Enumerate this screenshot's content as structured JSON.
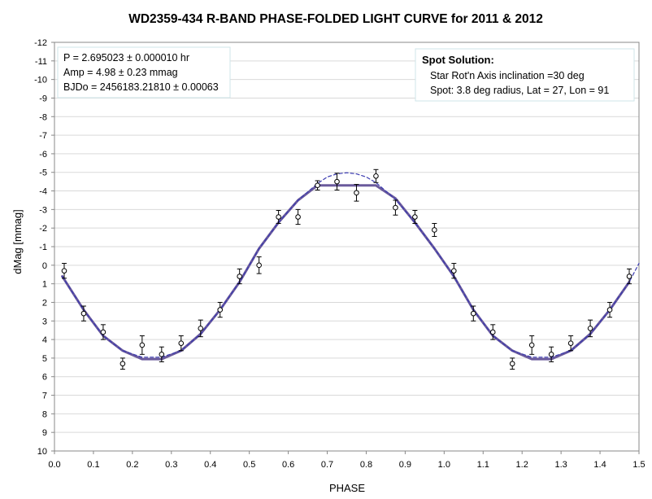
{
  "chart_data": {
    "type": "scatter",
    "title": "WD2359-434 R-BAND PHASE-FOLDED LIGHT CURVE for 2011 & 2012",
    "xlabel": "PHASE",
    "ylabel": "dMag [mmag]",
    "xlim": [
      0.0,
      1.5
    ],
    "ylim": [
      -12,
      10
    ],
    "y_inverted": true,
    "grid": "horizontal",
    "x_ticks": [
      "0.0",
      "0.1",
      "0.2",
      "0.3",
      "0.4",
      "0.5",
      "0.6",
      "0.7",
      "0.8",
      "0.9",
      "1.0",
      "1.1",
      "1.2",
      "1.3",
      "1.4",
      "1.5"
    ],
    "y_ticks": [
      "-12",
      "-11",
      "-10",
      "-9",
      "-8",
      "-7",
      "-6",
      "-5",
      "-4",
      "-3",
      "-2",
      "-1",
      "0",
      "1",
      "2",
      "3",
      "4",
      "5",
      "6",
      "7",
      "8",
      "9",
      "10"
    ],
    "observations": {
      "phase": [
        0.025,
        0.075,
        0.125,
        0.175,
        0.225,
        0.275,
        0.325,
        0.375,
        0.425,
        0.475,
        0.525,
        0.575,
        0.625,
        0.675,
        0.725,
        0.775,
        0.825,
        0.875,
        0.925,
        0.975,
        1.025,
        1.075,
        1.125,
        1.175,
        1.225,
        1.275,
        1.325,
        1.375,
        1.425,
        1.475
      ],
      "dmag": [
        0.3,
        2.6,
        3.6,
        5.3,
        4.3,
        4.8,
        4.2,
        3.4,
        2.4,
        0.6,
        0.0,
        -2.6,
        -2.6,
        -4.3,
        -4.5,
        -3.9,
        -4.8,
        -3.1,
        -2.6,
        -1.9,
        0.3,
        2.6,
        3.6,
        5.3,
        4.3,
        4.8,
        4.2,
        3.4,
        2.4,
        0.6
      ],
      "error": [
        0.4,
        0.4,
        0.4,
        0.3,
        0.5,
        0.4,
        0.4,
        0.45,
        0.4,
        0.4,
        0.45,
        0.35,
        0.4,
        0.25,
        0.45,
        0.45,
        0.35,
        0.4,
        0.35,
        0.35,
        0.4,
        0.4,
        0.4,
        0.3,
        0.5,
        0.4,
        0.4,
        0.45,
        0.4,
        0.4
      ]
    },
    "series": [
      {
        "name": "",
        "style": "solid",
        "color": "#6a5a9c",
        "x": [
          0.02,
          0.075,
          0.125,
          0.175,
          0.225,
          0.275,
          0.325,
          0.375,
          0.425,
          0.475,
          0.525,
          0.575,
          0.625,
          0.675,
          0.725,
          0.775,
          0.825,
          0.875,
          0.925,
          0.975,
          1.025,
          1.075,
          1.125,
          1.175,
          1.225,
          1.275,
          1.325,
          1.375,
          1.425,
          1.475
        ],
        "y": [
          0.6,
          2.4,
          3.8,
          4.6,
          5.05,
          5.05,
          4.6,
          3.7,
          2.4,
          0.9,
          -0.9,
          -2.3,
          -3.5,
          -4.3,
          -4.3,
          -4.3,
          -4.3,
          -3.6,
          -2.3,
          -0.9,
          0.6,
          2.4,
          3.8,
          4.6,
          5.05,
          5.05,
          4.6,
          3.7,
          2.4,
          0.9
        ]
      },
      {
        "name": "",
        "style": "dashed",
        "color": "#3a3ab0",
        "x": [
          0.02,
          0.075,
          0.125,
          0.175,
          0.225,
          0.275,
          0.325,
          0.375,
          0.425,
          0.475,
          0.525,
          0.575,
          0.625,
          0.675,
          0.7,
          0.725,
          0.75,
          0.775,
          0.8,
          0.825,
          0.875,
          0.925,
          0.975,
          1.025,
          1.075,
          1.125,
          1.175,
          1.225,
          1.275,
          1.325,
          1.375,
          1.425,
          1.475,
          1.5
        ],
        "y": [
          0.6,
          2.4,
          3.8,
          4.6,
          4.95,
          4.95,
          4.6,
          3.7,
          2.4,
          0.9,
          -0.9,
          -2.3,
          -3.5,
          -4.4,
          -4.75,
          -4.92,
          -4.98,
          -4.92,
          -4.75,
          -4.45,
          -3.55,
          -2.3,
          -0.9,
          0.6,
          2.4,
          3.8,
          4.6,
          4.95,
          4.95,
          4.6,
          3.7,
          2.4,
          0.9,
          -0.1
        ]
      }
    ],
    "annotations": {
      "params": [
        "P = 2.695023  ± 0.000010  hr",
        "Amp = 4.98 ± 0.23  mmag",
        "BJDo = 2456183.21810  ± 0.00063"
      ],
      "spot_title": "Spot Solution:",
      "spot_lines": [
        "Star Rot'n Axis inclination =30 deg",
        "Spot:  3.8 deg radius, Lat = 27, Lon = 91"
      ]
    }
  }
}
